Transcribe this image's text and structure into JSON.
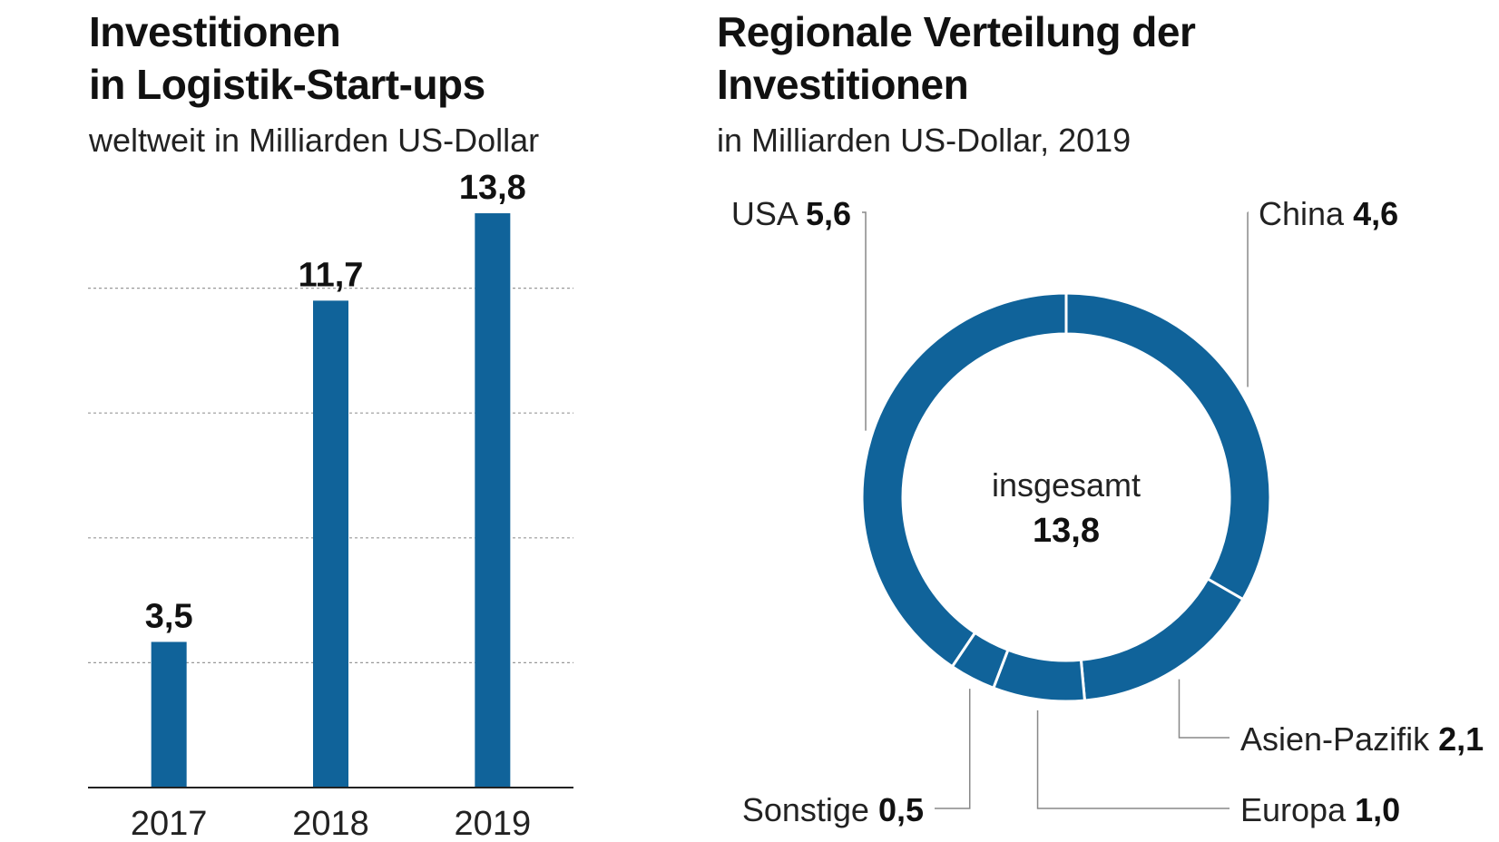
{
  "left_chart": {
    "title_line1": "Investitionen",
    "title_line2": "in Logistik-Start-ups",
    "subtitle": "weltweit in Milliarden US-Dollar"
  },
  "right_chart": {
    "title_line1": "Regionale Verteilung der",
    "title_line2": "Investitionen",
    "subtitle": "in Milliarden US-Dollar, 2019",
    "center_label": "insgesamt",
    "center_value": "13,8"
  },
  "colors": {
    "bar": "#10639a",
    "axis": "#222222",
    "grid": "#999999",
    "leader": "#888888"
  },
  "chart_data": [
    {
      "type": "bar",
      "title": "Investitionen in Logistik-Start-ups",
      "subtitle": "weltweit in Milliarden US-Dollar",
      "categories": [
        "2017",
        "2018",
        "2019"
      ],
      "values": [
        3.5,
        11.7,
        13.8
      ],
      "value_labels": [
        "3,5",
        "11,7",
        "13,8"
      ],
      "ylim": [
        0,
        15
      ],
      "gridlines": [
        3,
        6,
        9,
        12
      ],
      "xlabel": "",
      "ylabel": ""
    },
    {
      "type": "pie",
      "style": "donut",
      "title": "Regionale Verteilung der Investitionen",
      "subtitle": "in Milliarden US-Dollar, 2019",
      "total": 13.8,
      "slices": [
        {
          "name": "USA",
          "value": 5.6,
          "label": "5,6"
        },
        {
          "name": "China",
          "value": 4.6,
          "label": "4,6"
        },
        {
          "name": "Asien-Pazifik",
          "value": 2.1,
          "label": "2,1"
        },
        {
          "name": "Europa",
          "value": 1.0,
          "label": "1,0"
        },
        {
          "name": "Sonstige",
          "value": 0.5,
          "label": "0,5"
        }
      ]
    }
  ]
}
